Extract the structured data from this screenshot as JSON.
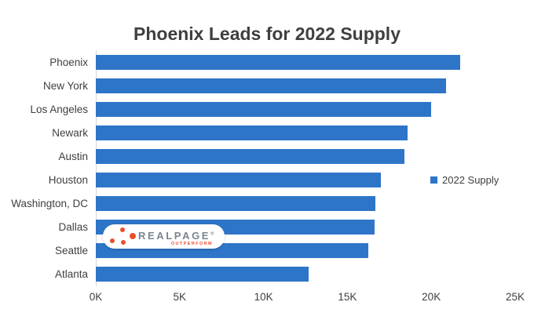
{
  "chart_data": {
    "type": "bar",
    "orientation": "horizontal",
    "title": "Phoenix Leads for 2022 Supply",
    "series_name": "2022 Supply",
    "categories": [
      "Phoenix",
      "New York",
      "Los Angeles",
      "Newark",
      "Austin",
      "Houston",
      "Washington, DC",
      "Dallas",
      "Seattle",
      "Atlanta"
    ],
    "values": [
      21700,
      20900,
      20000,
      18600,
      18400,
      17000,
      16650,
      16600,
      16250,
      12700
    ],
    "xlabel": "",
    "ylabel": "",
    "xlim": [
      0,
      25000
    ],
    "x_ticks": [
      "0K",
      "5K",
      "10K",
      "15K",
      "20K",
      "25K"
    ],
    "x_tick_values": [
      0,
      5000,
      10000,
      15000,
      20000,
      25000
    ],
    "grid": false,
    "legend_position": "middle-right",
    "bar_color": "#2e75c8"
  },
  "watermark": {
    "brand": "REALPAGE",
    "registered_mark": "®",
    "tagline": "OUTPERFORM",
    "dot_color": "#e8502d",
    "brand_color": "#7b8692"
  }
}
